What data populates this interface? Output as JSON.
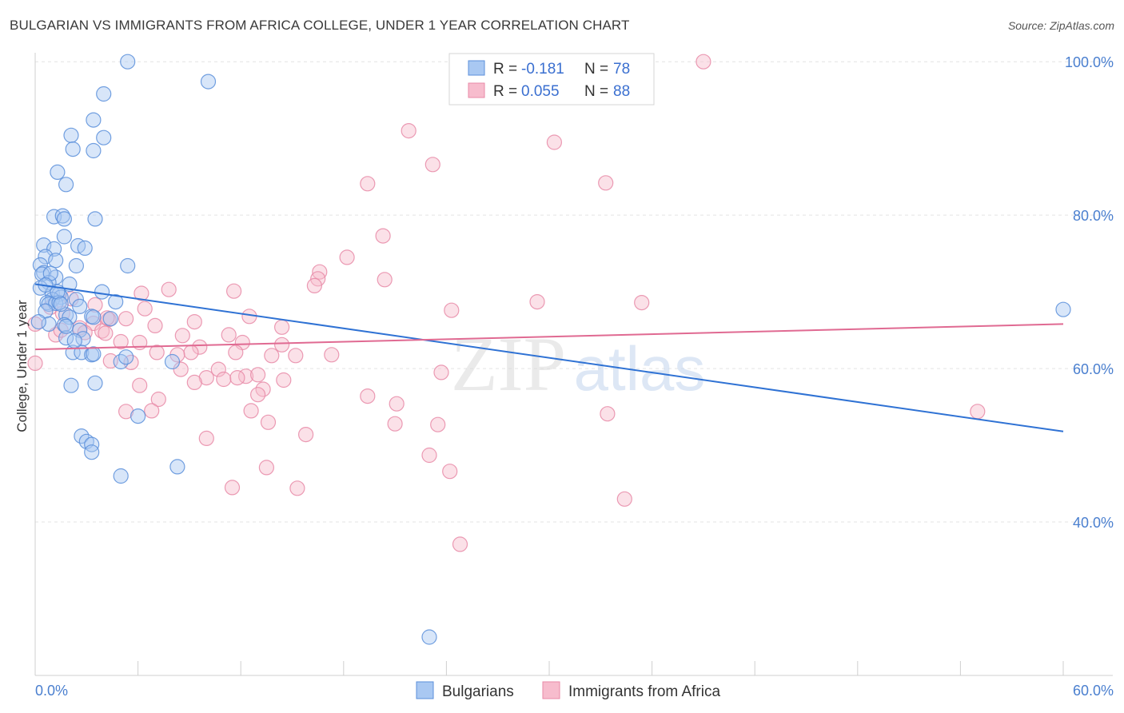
{
  "header": {
    "title": "BULGARIAN VS IMMIGRANTS FROM AFRICA COLLEGE, UNDER 1 YEAR CORRELATION CHART",
    "source": "Source: ZipAtlas.com"
  },
  "watermark": {
    "zip": "ZIP",
    "atlas": "atlas"
  },
  "colors": {
    "blue_fill": "#a9c8f2",
    "blue_stroke": "#5b8fdb",
    "blue_line": "#2f72d4",
    "pink_fill": "#f7bccd",
    "pink_stroke": "#e88aa7",
    "pink_line": "#e06a92",
    "grid": "#e3e3e3",
    "tick_text": "#4a7fcf"
  },
  "legend_top": {
    "rows": [
      {
        "r_label": "R = ",
        "r_value": "-0.181",
        "n_label": "N = ",
        "n_value": "78"
      },
      {
        "r_label": "R = ",
        "r_value": "0.055",
        "n_label": "N = ",
        "n_value": "88"
      }
    ]
  },
  "legend_bottom": [
    "Bulgarians",
    "Immigrants from Africa"
  ],
  "chart_data": {
    "type": "scatter",
    "title": "BULGARIAN VS IMMIGRANTS FROM AFRICA COLLEGE, UNDER 1 YEAR CORRELATION CHART",
    "ylabel": "College, Under 1 year",
    "xlabel": "",
    "xlim": [
      0,
      60
    ],
    "ylim": [
      20,
      102
    ],
    "x_tick_labels": [
      "0.0%",
      "60.0%"
    ],
    "y_ticks": [
      40,
      60,
      80,
      100
    ],
    "y_tick_labels": [
      "40.0%",
      "60.0%",
      "80.0%",
      "100.0%"
    ],
    "grid": true,
    "legend_position": "top-center",
    "series": [
      {
        "name": "Bulgarians",
        "r": -0.181,
        "n": 78,
        "trend": {
          "x": [
            0,
            60
          ],
          "y": [
            71.0,
            51.8
          ]
        },
        "points": [
          [
            5.4,
            100
          ],
          [
            10.1,
            97.4
          ],
          [
            4.0,
            95.8
          ],
          [
            3.4,
            92.4
          ],
          [
            2.1,
            90.4
          ],
          [
            4.0,
            90.1
          ],
          [
            2.2,
            88.6
          ],
          [
            3.4,
            88.4
          ],
          [
            1.3,
            85.6
          ],
          [
            1.8,
            84.0
          ],
          [
            1.1,
            79.8
          ],
          [
            1.6,
            79.9
          ],
          [
            1.7,
            79.5
          ],
          [
            3.5,
            79.5
          ],
          [
            1.7,
            77.2
          ],
          [
            0.5,
            76.1
          ],
          [
            2.5,
            76.0
          ],
          [
            1.1,
            75.6
          ],
          [
            2.9,
            75.7
          ],
          [
            0.6,
            74.6
          ],
          [
            1.2,
            74.1
          ],
          [
            0.3,
            73.5
          ],
          [
            2.4,
            73.4
          ],
          [
            5.4,
            73.4
          ],
          [
            0.5,
            72.5
          ],
          [
            0.4,
            72.3
          ],
          [
            1.2,
            71.9
          ],
          [
            0.8,
            71.2
          ],
          [
            2.0,
            71.0
          ],
          [
            0.3,
            70.5
          ],
          [
            3.9,
            70.0
          ],
          [
            1.0,
            69.8
          ],
          [
            1.4,
            69.7
          ],
          [
            1.5,
            69.3
          ],
          [
            1.0,
            69.0
          ],
          [
            2.4,
            69.0
          ],
          [
            4.7,
            68.7
          ],
          [
            0.7,
            68.6
          ],
          [
            0.8,
            68.4
          ],
          [
            1.2,
            68.5
          ],
          [
            1.4,
            68.6
          ],
          [
            2.6,
            68.1
          ],
          [
            0.6,
            67.5
          ],
          [
            1.8,
            67.0
          ],
          [
            2.0,
            66.7
          ],
          [
            3.3,
            66.8
          ],
          [
            4.4,
            66.5
          ],
          [
            0.8,
            65.8
          ],
          [
            1.7,
            65.7
          ],
          [
            2.6,
            65.0
          ],
          [
            1.8,
            64.0
          ],
          [
            2.8,
            63.9
          ],
          [
            0.2,
            66.1
          ],
          [
            2.2,
            62.1
          ],
          [
            2.7,
            62.1
          ],
          [
            3.3,
            61.8
          ],
          [
            3.4,
            61.9
          ],
          [
            5.0,
            60.9
          ],
          [
            5.3,
            61.5
          ],
          [
            8.0,
            60.9
          ],
          [
            2.1,
            57.8
          ],
          [
            3.5,
            58.1
          ],
          [
            6.0,
            53.8
          ],
          [
            2.7,
            51.2
          ],
          [
            3.0,
            50.5
          ],
          [
            3.3,
            50.1
          ],
          [
            3.3,
            49.1
          ],
          [
            8.3,
            47.2
          ],
          [
            5.0,
            46.0
          ],
          [
            23.0,
            25.0
          ],
          [
            60.0,
            67.7
          ],
          [
            1.8,
            65.5
          ],
          [
            2.3,
            63.6
          ],
          [
            1.3,
            70.0
          ],
          [
            0.9,
            72.4
          ],
          [
            0.6,
            70.9
          ],
          [
            3.4,
            66.7
          ],
          [
            1.5,
            68.4
          ]
        ]
      },
      {
        "name": "Immigrants from Africa",
        "r": 0.055,
        "n": 88,
        "trend": {
          "x": [
            0,
            60
          ],
          "y": [
            62.5,
            65.8
          ]
        },
        "points": [
          [
            39.0,
            100
          ],
          [
            21.8,
            91.0
          ],
          [
            30.3,
            89.5
          ],
          [
            23.2,
            86.6
          ],
          [
            19.4,
            84.1
          ],
          [
            33.3,
            84.2
          ],
          [
            20.3,
            77.3
          ],
          [
            18.2,
            74.5
          ],
          [
            16.6,
            72.6
          ],
          [
            16.5,
            71.7
          ],
          [
            20.4,
            71.6
          ],
          [
            16.3,
            70.8
          ],
          [
            7.8,
            70.3
          ],
          [
            11.6,
            70.1
          ],
          [
            6.2,
            69.8
          ],
          [
            29.3,
            68.7
          ],
          [
            35.4,
            68.6
          ],
          [
            3.5,
            68.3
          ],
          [
            6.4,
            67.8
          ],
          [
            24.3,
            67.6
          ],
          [
            0.9,
            68.0
          ],
          [
            1.6,
            67.2
          ],
          [
            12.5,
            66.8
          ],
          [
            4.3,
            66.4
          ],
          [
            9.3,
            66.1
          ],
          [
            3.4,
            65.9
          ],
          [
            7.0,
            65.6
          ],
          [
            14.4,
            65.4
          ],
          [
            2.6,
            65.3
          ],
          [
            3.9,
            64.9
          ],
          [
            4.1,
            64.6
          ],
          [
            8.6,
            64.3
          ],
          [
            11.3,
            64.4
          ],
          [
            1.2,
            64.4
          ],
          [
            5.0,
            63.5
          ],
          [
            6.1,
            63.4
          ],
          [
            12.1,
            63.4
          ],
          [
            9.6,
            62.8
          ],
          [
            14.4,
            63.1
          ],
          [
            7.1,
            62.1
          ],
          [
            9.1,
            62.1
          ],
          [
            11.7,
            62.1
          ],
          [
            8.3,
            61.8
          ],
          [
            13.8,
            61.7
          ],
          [
            15.2,
            61.7
          ],
          [
            17.3,
            61.8
          ],
          [
            4.4,
            61.0
          ],
          [
            5.6,
            60.8
          ],
          [
            8.5,
            59.9
          ],
          [
            10.7,
            59.9
          ],
          [
            12.3,
            59.0
          ],
          [
            13.0,
            59.2
          ],
          [
            23.7,
            59.5
          ],
          [
            10.0,
            58.8
          ],
          [
            11.0,
            58.6
          ],
          [
            11.8,
            58.8
          ],
          [
            14.5,
            58.5
          ],
          [
            9.3,
            58.2
          ],
          [
            6.1,
            57.8
          ],
          [
            13.3,
            57.3
          ],
          [
            7.2,
            56.0
          ],
          [
            13.0,
            56.6
          ],
          [
            19.4,
            56.4
          ],
          [
            21.1,
            55.4
          ],
          [
            5.3,
            54.4
          ],
          [
            6.8,
            54.5
          ],
          [
            12.6,
            54.5
          ],
          [
            33.4,
            54.1
          ],
          [
            55.0,
            54.4
          ],
          [
            13.6,
            53.0
          ],
          [
            21.0,
            52.8
          ],
          [
            23.5,
            52.7
          ],
          [
            15.8,
            51.4
          ],
          [
            10.0,
            50.9
          ],
          [
            23.0,
            48.7
          ],
          [
            24.2,
            46.6
          ],
          [
            13.5,
            47.1
          ],
          [
            11.5,
            44.5
          ],
          [
            15.3,
            44.4
          ],
          [
            34.4,
            43.0
          ],
          [
            24.8,
            37.1
          ],
          [
            0.0,
            60.7
          ],
          [
            0.0,
            65.8
          ],
          [
            1.5,
            65.0
          ],
          [
            2.9,
            64.7
          ],
          [
            4.2,
            66.6
          ],
          [
            2.1,
            69.1
          ],
          [
            5.3,
            66.5
          ]
        ]
      }
    ]
  }
}
